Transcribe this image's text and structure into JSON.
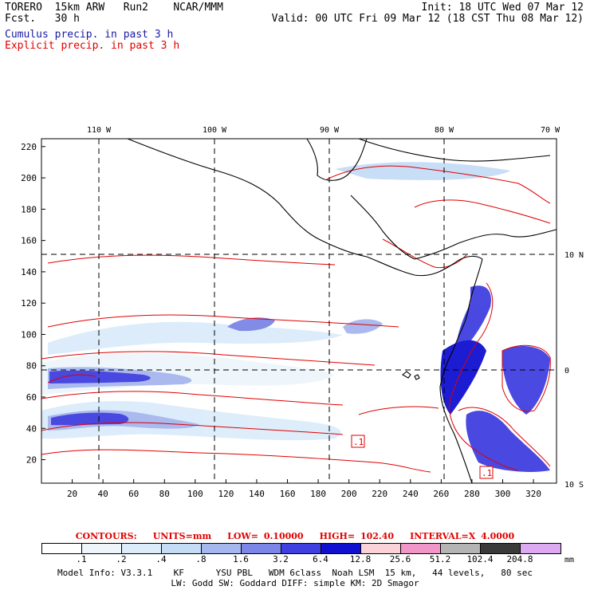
{
  "header": {
    "line1_left": "TORERO  15km ARW   Run2    NCAR/MMM",
    "line2_left": "Fcst.   30 h",
    "line1_right": "Init: 18 UTC Wed 07 Mar 12",
    "line2_right": "Valid: 00 UTC Fri 09 Mar 12 (18 CST Thu 08 Mar 12)"
  },
  "fields": {
    "cumulus": "Cumulus precip. in past 3 h",
    "explicit": "Explicit precip. in past 3 h"
  },
  "colors": {
    "cumulus_text": "#1a1aa6",
    "explicit_contour": "#e00000",
    "coast": "#000000"
  },
  "axes": {
    "x_ticks": [
      20,
      40,
      60,
      80,
      100,
      120,
      140,
      160,
      180,
      200,
      220,
      240,
      260,
      280,
      300,
      320
    ],
    "y_ticks": [
      20,
      40,
      60,
      80,
      100,
      120,
      140,
      160,
      180,
      200,
      220
    ],
    "x_range": [
      0,
      335
    ],
    "y_range": [
      5,
      225
    ],
    "lon_labels": [
      "110 W",
      "100 W",
      "90 W",
      "80 W",
      "70 W"
    ],
    "lat_labels": [
      "10 N",
      "0",
      "10 S"
    ]
  },
  "contour_labels": [
    ".1",
    ".1"
  ],
  "contours": {
    "title": "CONTOURS:",
    "units": "UNITS=mm",
    "low": "LOW= 0.10000",
    "high": "HIGH=  102.40",
    "interval": "INTERVAL=X  4.0000"
  },
  "scale": {
    "labels": [
      ".1",
      ".2",
      ".4",
      ".8",
      "1.6",
      "3.2",
      "6.4",
      "12.8",
      "25.6",
      "51.2",
      "102.4",
      "204.8"
    ],
    "unit": "mm",
    "colors": [
      "#ffffff",
      "#eef6fb",
      "#dcecfa",
      "#c4dcf6",
      "#a6b6ee",
      "#7c86e6",
      "#4040e0",
      "#1010d0",
      "#f9d3d8",
      "#f096c8",
      "#b4b4b4",
      "#3a3a3a",
      "#dcaaf0"
    ]
  },
  "footer": {
    "line1": "Model Info: V3.3.1    KF      YSU PBL   WDM 6class  Noah LSM  15 km,   44 levels,   80 sec",
    "line2": "LW: Godd SW: Goddard DIFF: simple KM: 2D Smagor"
  }
}
